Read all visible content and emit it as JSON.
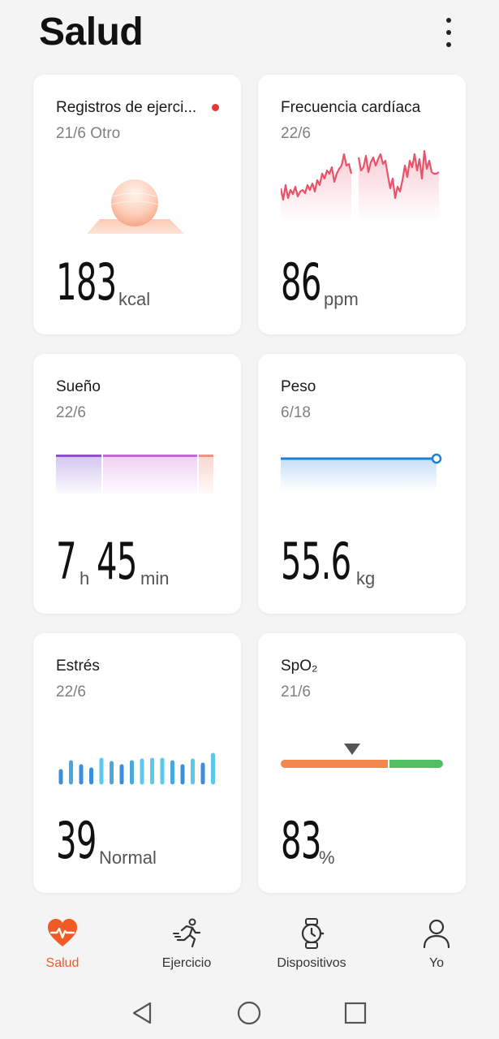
{
  "header": {
    "title": "Salud",
    "menu_icon": "more-vertical-icon"
  },
  "cards": {
    "exercise": {
      "title": "Registros de ejerci...",
      "subtitle": "21/6 Otro",
      "value": "183",
      "unit": "kcal",
      "dot_color": "#e53935"
    },
    "heart": {
      "title": "Frecuencia cardíaca",
      "subtitle": "22/6",
      "value": "86",
      "unit": "ppm",
      "color": "#e8536a"
    },
    "sleep": {
      "title": "Sueño",
      "subtitle": "22/6",
      "hours": "7",
      "hours_unit": "h",
      "minutes": "45",
      "minutes_unit": "min"
    },
    "weight": {
      "title": "Peso",
      "subtitle": "6/18",
      "value": "55.6",
      "unit": "kg",
      "color": "#1e7fd6"
    },
    "stress": {
      "title": "Estrés",
      "subtitle": "22/6",
      "value": "39",
      "label": "Normal"
    },
    "spo2": {
      "title": "SpO₂",
      "subtitle": "21/6",
      "value": "83",
      "unit": "%"
    }
  },
  "bottom_nav": [
    {
      "label": "Salud",
      "icon": "heart-pulse-icon",
      "active": true
    },
    {
      "label": "Ejercicio",
      "icon": "running-icon",
      "active": false
    },
    {
      "label": "Dispositivos",
      "icon": "watch-icon",
      "active": false
    },
    {
      "label": "Yo",
      "icon": "person-icon",
      "active": false
    }
  ],
  "system_nav": {
    "back": "back-icon",
    "home": "home-icon",
    "recents": "recents-icon"
  },
  "colors": {
    "accent": "#f05a24",
    "card_bg": "#ffffff",
    "page_bg": "#f4f4f4"
  }
}
